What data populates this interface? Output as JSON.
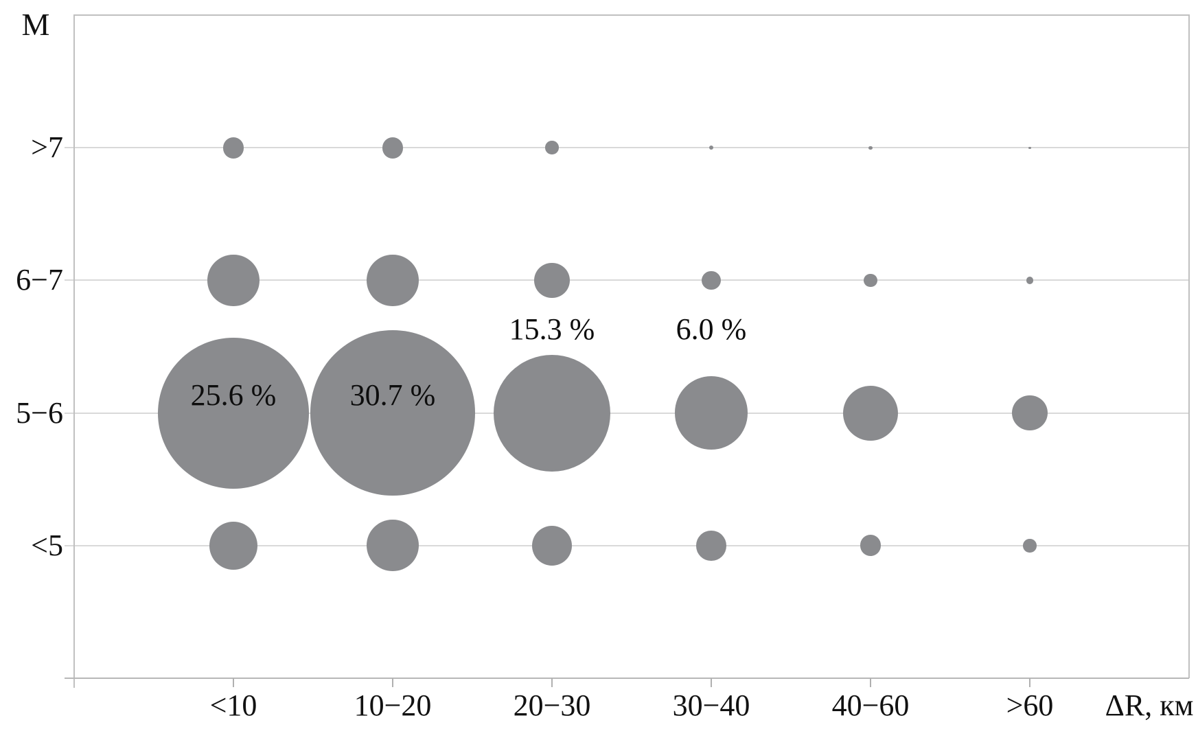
{
  "chart": {
    "y_axis_title": "M",
    "x_axis_title": "ΔR, км",
    "colors": {
      "bubble": "#8a8b8e",
      "gridline": "#d9d9d9",
      "border": "#c0c0c0",
      "axis_line": "#b7b7b7",
      "tick": "#b0b0b0",
      "text": "#111111"
    }
  },
  "chart_data": {
    "type": "bubble",
    "x_categories": [
      "<10",
      "10−20",
      "20−30",
      "30−40",
      "40−60",
      ">60"
    ],
    "y_categories_bottom_to_top": [
      "<5",
      "5−6",
      "6−7",
      ">7"
    ],
    "value_unit": "percent_of_events",
    "series": [
      {
        "name": ">7",
        "values": [
          0.5,
          0.5,
          0.2,
          0.02,
          0.015,
          0.005
        ]
      },
      {
        "name": "6−7",
        "values": [
          3.0,
          3.0,
          1.4,
          0.4,
          0.2,
          0.06
        ]
      },
      {
        "name": "5−6",
        "values": [
          25.6,
          30.7,
          15.3,
          6.0,
          3.4,
          1.4
        ]
      },
      {
        "name": "<5",
        "values": [
          2.6,
          3.0,
          1.8,
          1.0,
          0.5,
          0.2
        ]
      }
    ],
    "point_labels": [
      {
        "row": "5−6",
        "col_index": 0,
        "text": "25.6 %",
        "placement": "inside"
      },
      {
        "row": "5−6",
        "col_index": 1,
        "text": "30.7 %",
        "placement": "inside"
      },
      {
        "row": "5−6",
        "col_index": 2,
        "text": "15.3 %",
        "placement": "above"
      },
      {
        "row": "5−6",
        "col_index": 3,
        "text": "6.0 %",
        "placement": "above"
      }
    ],
    "legend": "none",
    "grid": "horizontal-only"
  }
}
